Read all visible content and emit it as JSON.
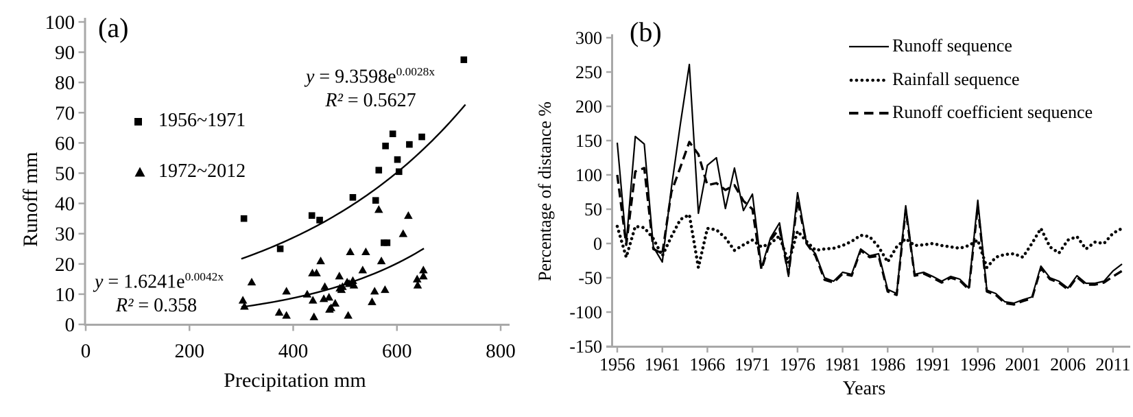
{
  "colors": {
    "axis": "#a8a8a8",
    "series": "#000000",
    "background": "#ffffff"
  },
  "panel_a": {
    "label": "(a)",
    "y_axis": {
      "title": "Runoff  mm",
      "ticks": [
        0,
        10,
        20,
        30,
        40,
        50,
        60,
        70,
        80,
        90,
        100
      ],
      "range": [
        0,
        100
      ]
    },
    "x_axis": {
      "title": "Precipitation  mm",
      "ticks": [
        0,
        200,
        400,
        600,
        800
      ],
      "range": [
        0,
        800
      ]
    },
    "legend": [
      {
        "marker": "square",
        "label": "1956~1971"
      },
      {
        "marker": "triangle",
        "label": "1972~2012"
      }
    ],
    "equations": {
      "upper": {
        "var": "y",
        "mid": " = 9.3598e",
        "exp": "0.0028x",
        "r2_var": "R²",
        "r2_val": " = 0.5627"
      },
      "lower": {
        "var": "y",
        "mid": " = 1.6241e",
        "exp": "0.0042x",
        "r2_var": "R²",
        "r2_val": " = 0.358"
      }
    }
  },
  "panel_b": {
    "label": "(b)",
    "y_axis": {
      "title": "Percentage of distance  %",
      "ticks": [
        300,
        250,
        200,
        150,
        100,
        50,
        0,
        -50,
        -100,
        -150
      ],
      "range": [
        -150,
        300
      ]
    },
    "x_axis": {
      "title": "Years",
      "ticks": [
        1956,
        1961,
        1966,
        1971,
        1976,
        1981,
        1986,
        1991,
        1996,
        2001,
        2006,
        2011
      ]
    },
    "legend": [
      {
        "style": "solid",
        "label": "Runoff sequence"
      },
      {
        "style": "dotted",
        "label": "Rainfall sequence"
      },
      {
        "style": "dashed",
        "label": "Runoff coefficient sequence"
      }
    ]
  },
  "chart_data": [
    {
      "type": "scatter",
      "title": "(a)",
      "xlabel": "Precipitation mm",
      "ylabel": "Runoff mm",
      "xlim": [
        0,
        800
      ],
      "ylim": [
        0,
        100
      ],
      "grid": false,
      "legend_position": "inside-left",
      "series": [
        {
          "name": "1956~1971",
          "marker": "square",
          "points": [
            [
              305,
              35
            ],
            [
              375,
              25
            ],
            [
              436,
              36
            ],
            [
              451,
              34.5
            ],
            [
              515,
              42
            ],
            [
              559,
              41
            ],
            [
              565,
              51
            ],
            [
              575,
              27
            ],
            [
              581,
              27
            ],
            [
              578,
              59
            ],
            [
              592,
              63
            ],
            [
              601,
              54.5
            ],
            [
              604,
              50.5
            ],
            [
              624,
              59.5
            ],
            [
              648,
              62
            ],
            [
              729,
              87.5
            ]
          ]
        },
        {
          "name": "1972~2012",
          "marker": "triangle",
          "points": [
            [
              303,
              8
            ],
            [
              306,
              6
            ],
            [
              320,
              14
            ],
            [
              373,
              4
            ],
            [
              387,
              3
            ],
            [
              387,
              11
            ],
            [
              427,
              10
            ],
            [
              437,
              17
            ],
            [
              445,
              17
            ],
            [
              438,
              8
            ],
            [
              440,
              2.5
            ],
            [
              453,
              21
            ],
            [
              459,
              8.5
            ],
            [
              461,
              12.5
            ],
            [
              469,
              9
            ],
            [
              470,
              5
            ],
            [
              473,
              5.5
            ],
            [
              481,
              7
            ],
            [
              489,
              16
            ],
            [
              490,
              12
            ],
            [
              493,
              11.5
            ],
            [
              495,
              12.5
            ],
            [
              504,
              14
            ],
            [
              506,
              3
            ],
            [
              508,
              13.5
            ],
            [
              510,
              24
            ],
            [
              515,
              14.5
            ],
            [
              517,
              13
            ],
            [
              534,
              18
            ],
            [
              540,
              24
            ],
            [
              552,
              7.5
            ],
            [
              557,
              11
            ],
            [
              565,
              38
            ],
            [
              570,
              21
            ],
            [
              577,
              11.5
            ],
            [
              612,
              30
            ],
            [
              622,
              36
            ],
            [
              639,
              15
            ],
            [
              640,
              13
            ],
            [
              651,
              18
            ],
            [
              651,
              16
            ]
          ]
        }
      ],
      "trendlines": [
        {
          "equation": "y = 9.3598e^(0.0028x)",
          "a": 9.3598,
          "b": 0.0028,
          "r2": 0.5627,
          "x_range": [
            300,
            732
          ]
        },
        {
          "equation": "y = 1.6241e^(0.0042x)",
          "a": 1.6241,
          "b": 0.0042,
          "r2": 0.358,
          "x_range": [
            300,
            652
          ]
        }
      ]
    },
    {
      "type": "line",
      "title": "(b)",
      "xlabel": "Years",
      "ylabel": "Percentage of distance %",
      "ylim": [
        -150,
        300
      ],
      "grid": false,
      "legend_position": "top-right",
      "x_start": 1956,
      "x_end": 2012,
      "series": [
        {
          "name": "Runoff sequence",
          "style": "solid",
          "values": [
            147,
            0,
            156,
            145,
            -5,
            -27,
            81,
            174,
            261,
            44,
            114,
            125,
            51,
            110,
            48,
            72,
            -35,
            8,
            30,
            -48,
            74,
            0,
            -15,
            -50,
            -55,
            -42,
            -45,
            -8,
            -18,
            -15,
            -67,
            -73,
            55,
            -45,
            -42,
            -48,
            -55,
            -48,
            -52,
            -65,
            63,
            -68,
            -73,
            -85,
            -87,
            -82,
            -78,
            -33,
            -50,
            -55,
            -65,
            -47,
            -58,
            -58,
            -55,
            -40,
            -30
          ]
        },
        {
          "name": "Rainfall sequence",
          "style": "dotted",
          "values": [
            25,
            -20,
            25,
            23,
            7,
            -18,
            10,
            35,
            42,
            -35,
            22,
            20,
            8,
            -10,
            -2,
            5,
            -5,
            0,
            11,
            -28,
            18,
            3,
            -10,
            -8,
            -7,
            -3,
            3,
            12,
            10,
            -5,
            -27,
            -5,
            7,
            -3,
            -2,
            0,
            -3,
            -5,
            -7,
            -3,
            5,
            -35,
            -20,
            -16,
            -15,
            -20,
            0,
            22,
            -5,
            -14,
            5,
            10,
            -8,
            2,
            0,
            15,
            22
          ]
        },
        {
          "name": "Runoff coefficient sequence",
          "style": "dashed",
          "values": [
            100,
            -2,
            105,
            110,
            -8,
            -15,
            75,
            111,
            148,
            130,
            85,
            88,
            78,
            85,
            62,
            50,
            -38,
            5,
            22,
            -45,
            63,
            0,
            -18,
            -53,
            -57,
            -44,
            -47,
            -10,
            -20,
            -18,
            -70,
            -75,
            50,
            -47,
            -44,
            -50,
            -57,
            -50,
            -54,
            -67,
            55,
            -70,
            -75,
            -87,
            -89,
            -84,
            -80,
            -36,
            -52,
            -57,
            -67,
            -49,
            -60,
            -60,
            -57,
            -48,
            -40
          ]
        }
      ]
    }
  ]
}
